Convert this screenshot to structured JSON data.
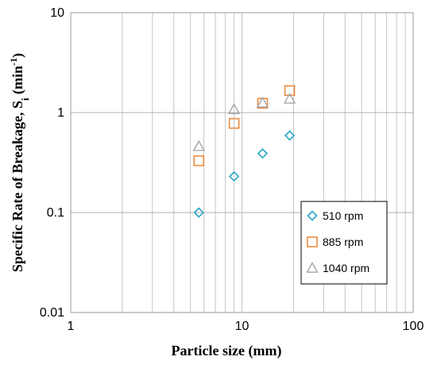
{
  "chart_data": {
    "type": "scatter",
    "title": "",
    "xlabel": "Particle size (mm)",
    "ylabel": "Specific Rate of Breakage, S",
    "ylabel_sub": "i",
    "ylabel_unit_prefix": " (min",
    "ylabel_unit_sup": "-1",
    "ylabel_unit_suffix": ")",
    "xscale": "log",
    "yscale": "log",
    "xlim": [
      1,
      100
    ],
    "ylim": [
      0.01,
      10
    ],
    "x_ticks": [
      {
        "value": 1,
        "label": "1"
      },
      {
        "value": 10,
        "label": "10"
      },
      {
        "value": 100,
        "label": "100"
      }
    ],
    "y_ticks": [
      {
        "value": 10,
        "label": "10"
      },
      {
        "value": 1,
        "label": "1"
      },
      {
        "value": 0.1,
        "label": "0.1"
      },
      {
        "value": 0.01,
        "label": "0.01"
      }
    ],
    "grid": true,
    "legend_position": "right-middle",
    "series": [
      {
        "name": "510 rpm",
        "marker": "diamond",
        "color": "#2aa6c5",
        "points": [
          {
            "x": 5.6,
            "y": 0.1
          },
          {
            "x": 9.0,
            "y": 0.23
          },
          {
            "x": 13.2,
            "y": 0.39
          },
          {
            "x": 19.0,
            "y": 0.59
          }
        ]
      },
      {
        "name": "885 rpm",
        "marker": "square",
        "color": "#ed8b3d",
        "points": [
          {
            "x": 5.6,
            "y": 0.33
          },
          {
            "x": 9.0,
            "y": 0.78
          },
          {
            "x": 13.2,
            "y": 1.24
          },
          {
            "x": 19.0,
            "y": 1.66
          }
        ]
      },
      {
        "name": "1040 rpm",
        "marker": "triangle",
        "color": "#a6a6a6",
        "points": [
          {
            "x": 5.6,
            "y": 0.46
          },
          {
            "x": 9.0,
            "y": 1.08
          },
          {
            "x": 13.2,
            "y": 1.25
          },
          {
            "x": 19.0,
            "y": 1.37
          }
        ]
      }
    ]
  }
}
